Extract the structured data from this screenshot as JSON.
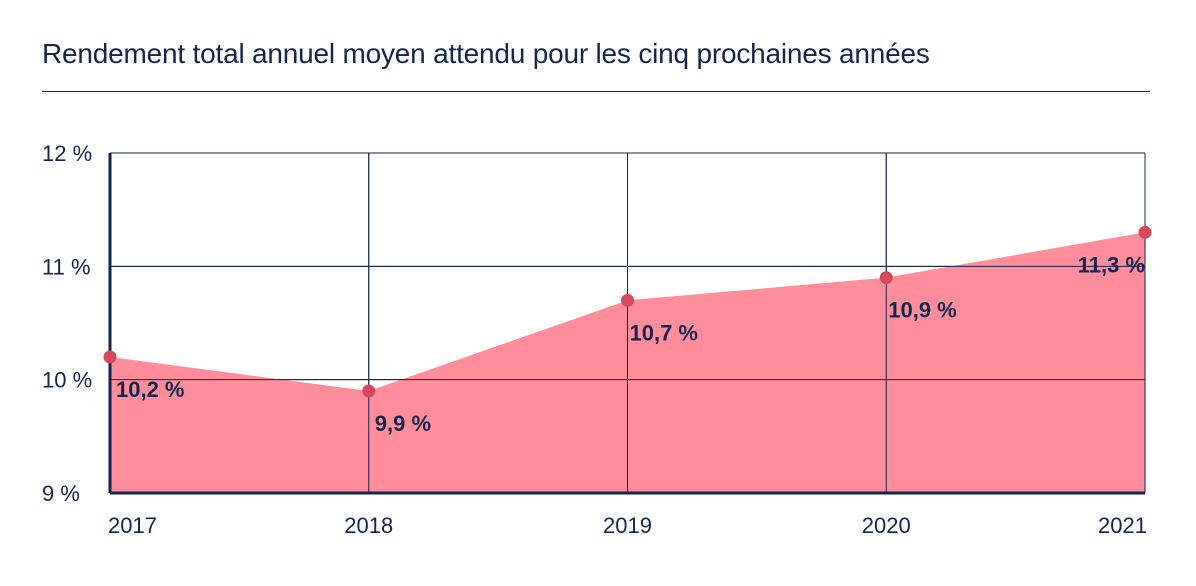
{
  "title": "Rendement total annuel moyen attendu pour les cinq prochaines années",
  "chart_data": {
    "type": "area",
    "title": "Rendement total annuel moyen attendu pour les cinq prochaines années",
    "categories": [
      "2017",
      "2018",
      "2019",
      "2020",
      "2021"
    ],
    "values": [
      10.2,
      9.9,
      10.7,
      10.9,
      11.3
    ],
    "data_labels": [
      "10,2 %",
      "9,9 %",
      "10,7 %",
      "10,9 %",
      "11,3 %"
    ],
    "ylim": [
      9,
      12
    ],
    "yticks": [
      9,
      10,
      11,
      12
    ],
    "ytick_labels": [
      "9 %",
      "10 %",
      "11 %",
      "12 %"
    ],
    "xlabel": "",
    "ylabel": "",
    "grid": true,
    "colors": {
      "fill": "#ff8d9b",
      "marker": "#d9475d",
      "axis": "#14244f",
      "grid": "#14244f"
    }
  }
}
